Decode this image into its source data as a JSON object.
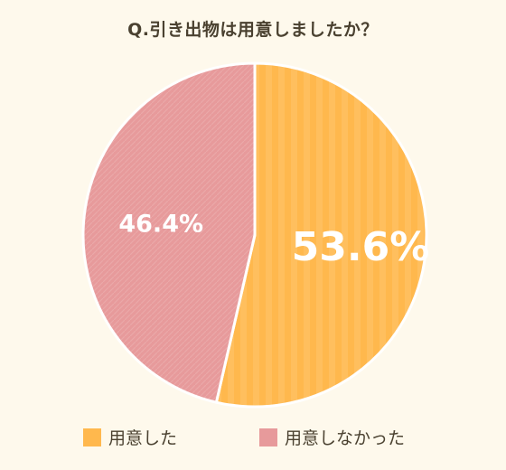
{
  "chart_data": {
    "type": "pie",
    "title": "Q.引き出物は用意しましたか？",
    "slices": [
      {
        "label": "用意した",
        "value": 53.6,
        "display": "53.6%",
        "color": "#FFB84D"
      },
      {
        "label": "用意しなかった",
        "value": 46.4,
        "display": "46.4%",
        "color": "#E79A9B"
      }
    ],
    "legend_position": "bottom",
    "start_angle": "top",
    "direction": "clockwise"
  }
}
